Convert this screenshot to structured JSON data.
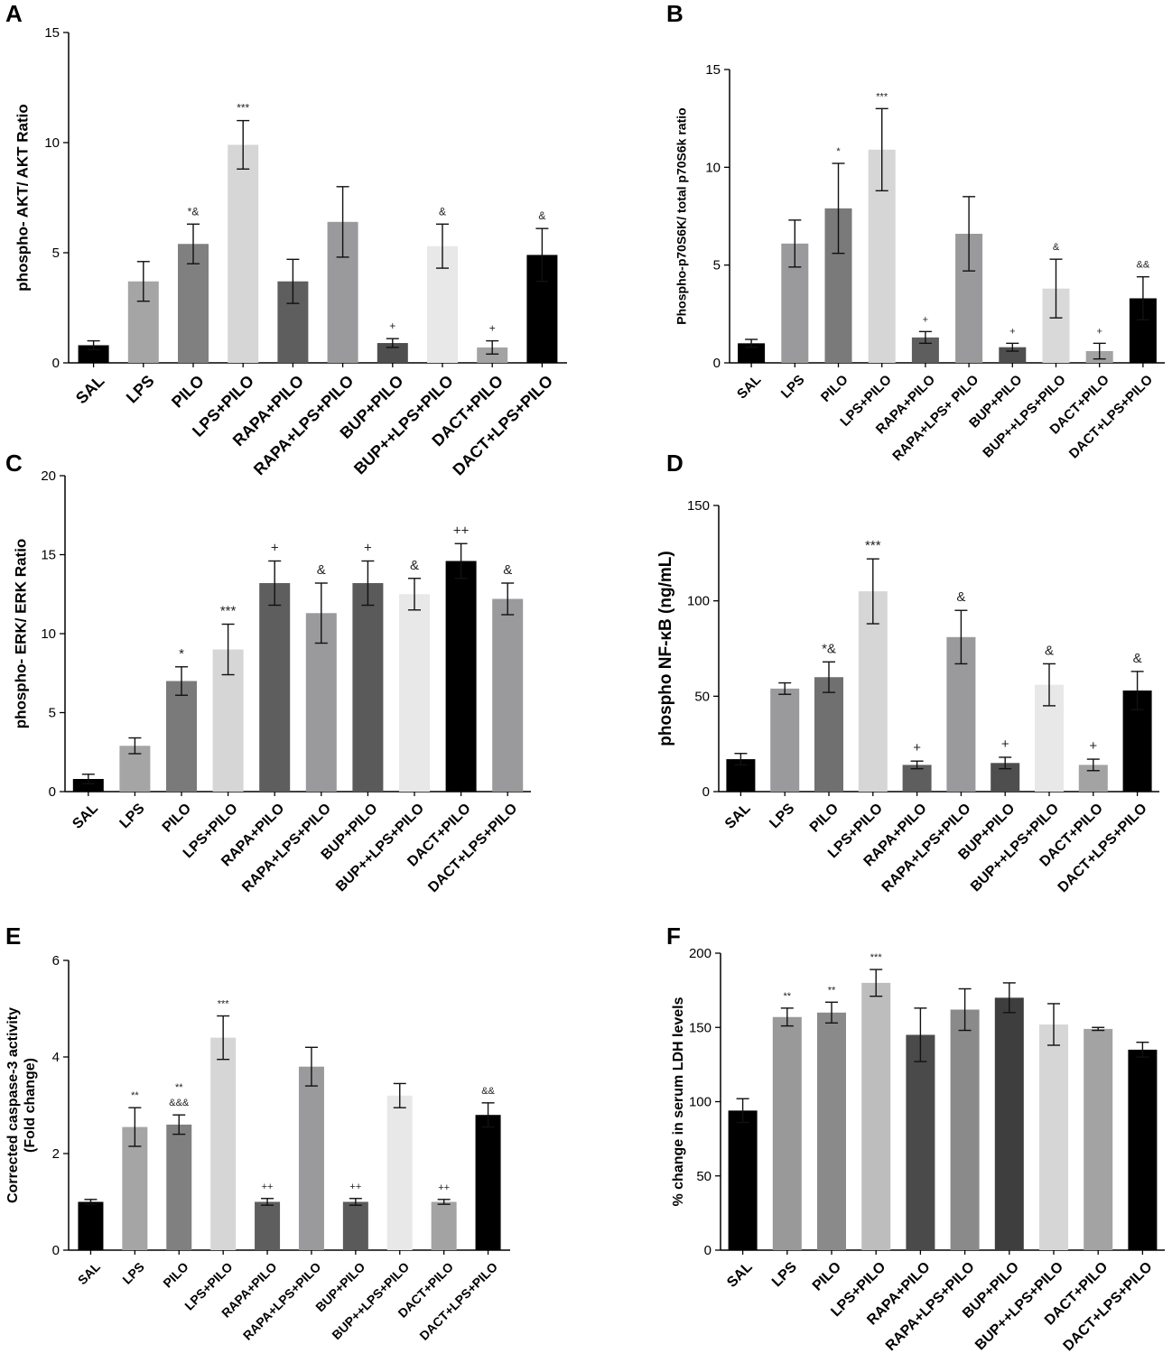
{
  "figure": {
    "panel_count": 6
  },
  "chart_data": [
    {
      "id": "A",
      "type": "bar",
      "letter": "A",
      "title": "",
      "ylabel": "phospho- AKT/ AKT Ratio",
      "xlabel": "",
      "ylim": [
        0,
        15
      ],
      "yticks": [
        0,
        5,
        10,
        15
      ],
      "categories": [
        "SAL",
        "LPS",
        "PILO",
        "LPS+PILO",
        "RAPA+PILO",
        "RAPA+LPS+PILO",
        "BUP+PILO",
        "BUP++LPS+PILO",
        "DACT+PILO",
        "DACT+LPS+PILO"
      ],
      "values": [
        0.8,
        3.7,
        5.4,
        9.9,
        3.7,
        6.4,
        0.9,
        5.3,
        0.7,
        4.9
      ],
      "errors": [
        0.2,
        0.9,
        0.9,
        1.1,
        1.0,
        1.6,
        0.2,
        1.0,
        0.3,
        1.2
      ],
      "colors": [
        "#000000",
        "#a5a5a5",
        "#808080",
        "#d6d6d6",
        "#5e5e5e",
        "#9a9a9c",
        "#4e4e4e",
        "#e8e8e8",
        "#a3a3a3",
        "#000000"
      ],
      "annotations": [
        "",
        "",
        "*&",
        "***",
        "",
        "",
        "+",
        "&",
        "+",
        "&"
      ],
      "grid": false
    },
    {
      "id": "B",
      "type": "bar",
      "letter": "B",
      "title": "",
      "ylabel": "Phospho-p70S6K/ total p70S6k ratio",
      "xlabel": "",
      "ylim": [
        0,
        15
      ],
      "yticks": [
        0,
        5,
        10,
        15
      ],
      "categories": [
        "SAL",
        "LPS",
        "PILO",
        "LPS+PILO",
        "RAPA+PILO",
        "RAPA+LPS+ PILO",
        "BUP+PILO",
        "BUP++LPS+PILO",
        "DACT+PILO",
        "DACT+LPS+PILO"
      ],
      "values": [
        1.0,
        6.1,
        7.9,
        10.9,
        1.3,
        6.6,
        0.8,
        3.8,
        0.6,
        3.3
      ],
      "errors": [
        0.2,
        1.2,
        2.3,
        2.1,
        0.3,
        1.9,
        0.2,
        1.5,
        0.4,
        1.1
      ],
      "colors": [
        "#000000",
        "#9a9a9c",
        "#7a7a7a",
        "#d6d6d6",
        "#5e5e5e",
        "#9a9a9c",
        "#4e4e4e",
        "#d9d9d9",
        "#a3a3a3",
        "#000000"
      ],
      "annotations": [
        "",
        "",
        "*",
        "***",
        "+",
        "",
        "+",
        "&",
        "+",
        "&&"
      ],
      "grid": false
    },
    {
      "id": "C",
      "type": "bar",
      "letter": "C",
      "title": "",
      "ylabel": "phospho- ERK/ ERK Ratio",
      "xlabel": "",
      "ylim": [
        0,
        20
      ],
      "yticks": [
        0,
        5,
        10,
        15,
        20
      ],
      "categories": [
        "SAL",
        "LPS",
        "PILO",
        "LPS+PILO",
        "RAPA+PILO",
        "RAPA+LPS+PILO",
        "BUP+PILO",
        "BUP++LPS+PILO",
        "DACT+PILO",
        "DACT+LPS+PILO"
      ],
      "values": [
        0.8,
        2.9,
        7.0,
        9.0,
        13.2,
        11.3,
        13.2,
        12.5,
        14.6,
        12.2
      ],
      "errors": [
        0.3,
        0.5,
        0.9,
        1.6,
        1.4,
        1.9,
        1.4,
        1.0,
        1.1,
        1.0
      ],
      "colors": [
        "#000000",
        "#a5a5a5",
        "#7a7a7a",
        "#d6d6d6",
        "#5e5e5e",
        "#9a9a9c",
        "#5a5a5a",
        "#e8e8e8",
        "#000000",
        "#9a9a9c"
      ],
      "annotations": [
        "",
        "",
        "*",
        "***",
        "+",
        "&",
        "+",
        "&",
        "++",
        "&"
      ],
      "grid": false
    },
    {
      "id": "D",
      "type": "bar",
      "letter": "D",
      "title": "",
      "ylabel": "phospho NF-κB (ng/mL)",
      "xlabel": "",
      "ylim": [
        0,
        150
      ],
      "yticks": [
        0,
        50,
        100,
        150
      ],
      "categories": [
        "SAL",
        "LPS",
        "PILO",
        "LPS+PILO",
        "RAPA+PILO",
        "RAPA+LPS+PILO",
        "BUP+PILO",
        "BUP++LPS+PILO",
        "DACT+PILO",
        "DACT+LPS+PILO"
      ],
      "values": [
        17,
        54,
        60,
        105,
        14,
        81,
        15,
        56,
        14,
        53
      ],
      "errors": [
        3,
        3,
        8,
        17,
        2,
        14,
        3,
        11,
        3,
        10
      ],
      "colors": [
        "#000000",
        "#9a9a9c",
        "#707070",
        "#d6d6d6",
        "#5e5e5e",
        "#9a9a9c",
        "#4e4e4e",
        "#e8e8e8",
        "#a3a3a3",
        "#000000"
      ],
      "annotations": [
        "",
        "",
        "*&",
        "***",
        "+",
        "&",
        "+",
        "&",
        "+",
        "&"
      ],
      "grid": false
    },
    {
      "id": "E",
      "type": "bar",
      "letter": "E",
      "title": "",
      "ylabel": "Corrected caspase-3 activity",
      "ylabel2": "(Fold change)",
      "xlabel": "",
      "ylim": [
        0,
        6
      ],
      "yticks": [
        0,
        2,
        4,
        6
      ],
      "categories": [
        "SAL",
        "LPS",
        "PILO",
        "LPS+PILO",
        "RAPA+PILO",
        "RAPA+LPS+PILO",
        "BUP+PILO",
        "BUP++LPS+PILO",
        "DACT+PILO",
        "DACT+LPS+PILO"
      ],
      "values": [
        1.0,
        2.55,
        2.6,
        4.4,
        1.0,
        3.8,
        1.0,
        3.2,
        1.0,
        2.8
      ],
      "errors": [
        0.05,
        0.4,
        0.2,
        0.45,
        0.07,
        0.4,
        0.07,
        0.25,
        0.05,
        0.25
      ],
      "colors": [
        "#000000",
        "#a5a5a5",
        "#808080",
        "#d6d6d6",
        "#5e5e5e",
        "#9a9a9c",
        "#5a5a5a",
        "#e8e8e8",
        "#a3a3a3",
        "#000000"
      ],
      "annotations": [
        "",
        "**",
        "**|&&&",
        "***",
        "++",
        "",
        "++",
        "",
        "++",
        "&&"
      ],
      "grid": false
    },
    {
      "id": "F",
      "type": "bar",
      "letter": "F",
      "title": "",
      "ylabel": "% change in  serum LDH levels",
      "xlabel": "",
      "ylim": [
        0,
        200
      ],
      "yticks": [
        0,
        50,
        100,
        150,
        200
      ],
      "categories": [
        "SAL",
        "LPS",
        "PILO",
        "LPS+PILO",
        "RAPA+PILO",
        "RAPA+LPS+PILO",
        "BUP+PILO",
        "BUP++LPS+PILO",
        "DACT+PILO",
        "DACT+LPS+PILO"
      ],
      "values": [
        94,
        157,
        160,
        180,
        145,
        162,
        170,
        152,
        149,
        135
      ],
      "errors": [
        8,
        6,
        7,
        9,
        18,
        14,
        10,
        14,
        1,
        5
      ],
      "colors": [
        "#000000",
        "#999999",
        "#8a8a8a",
        "#bdbdbd",
        "#4a4a4a",
        "#8a8a8a",
        "#3e3e3e",
        "#d6d6d6",
        "#a3a3a3",
        "#000000"
      ],
      "annotations": [
        "",
        "**",
        "**",
        "***",
        "",
        "",
        "",
        "",
        "",
        ""
      ],
      "grid": false
    }
  ]
}
